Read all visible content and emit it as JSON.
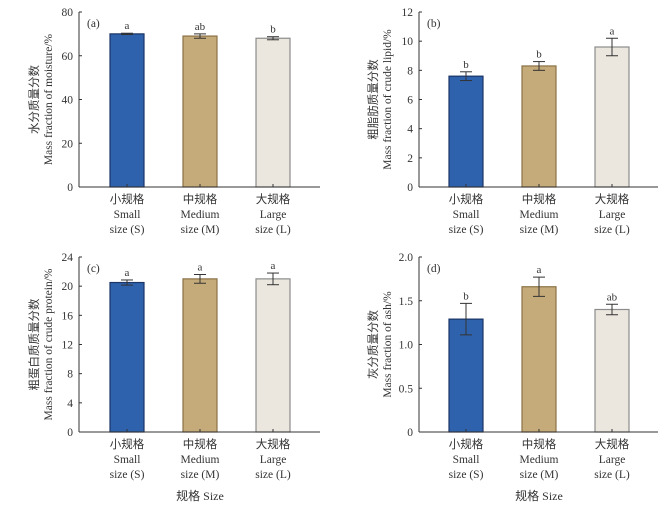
{
  "xlabel": "规格 Size",
  "colors": {
    "S": "#2f62ad",
    "M": "#c6ab7a",
    "L": "#ebe7df",
    "S_edge": "#1a3566",
    "M_edge": "#8a7145",
    "L_edge": "#8c8c8c"
  },
  "chart_data": [
    {
      "type": "bar",
      "panel": "(a)",
      "ylabel_cn": "水分质量分数",
      "ylabel_en": "Mass fraction of moisture/%",
      "ylim": [
        0,
        80
      ],
      "ticks": [
        "0",
        "20",
        "40",
        "60",
        "80"
      ],
      "categories": [
        [
          "小规格",
          "Small",
          "size (S)"
        ],
        [
          "中规格",
          "Medium",
          "size (M)"
        ],
        [
          "大规格",
          "Large",
          "size (L)"
        ]
      ],
      "values": [
        70,
        69,
        68
      ],
      "errors": [
        0.3,
        1.0,
        0.7
      ],
      "letters": [
        "a",
        "ab",
        "b"
      ]
    },
    {
      "type": "bar",
      "panel": "(b)",
      "ylabel_cn": "粗脂肪质量分数",
      "ylabel_en": "Mass fraction of crude lipid/%",
      "ylim": [
        0,
        12
      ],
      "ticks": [
        "0",
        "2",
        "4",
        "6",
        "8",
        "10",
        "12"
      ],
      "categories": [
        [
          "小规格",
          "Small",
          "size (S)"
        ],
        [
          "中规格",
          "Medium",
          "size (M)"
        ],
        [
          "大规格",
          "Large",
          "size (L)"
        ]
      ],
      "values": [
        7.6,
        8.3,
        9.6
      ],
      "errors": [
        0.3,
        0.3,
        0.6
      ],
      "letters": [
        "b",
        "b",
        "a"
      ]
    },
    {
      "type": "bar",
      "panel": "(c)",
      "ylabel_cn": "粗蛋白质质量分数",
      "ylabel_en": "Mass fraction of crude protein/%",
      "ylim": [
        0,
        24
      ],
      "ticks": [
        "0",
        "4",
        "8",
        "12",
        "16",
        "20",
        "24"
      ],
      "categories": [
        [
          "小规格",
          "Small",
          "size (S)"
        ],
        [
          "中规格",
          "Medium",
          "size (M)"
        ],
        [
          "大规格",
          "Large",
          "size (L)"
        ]
      ],
      "values": [
        20.5,
        21.0,
        21.0
      ],
      "errors": [
        0.35,
        0.6,
        0.8
      ],
      "letters": [
        "a",
        "a",
        "a"
      ]
    },
    {
      "type": "bar",
      "panel": "(d)",
      "ylabel_cn": "灰分质量分数",
      "ylabel_en": "Mass fraction of ash/%",
      "ylim": [
        0,
        2
      ],
      "ticks": [
        "0",
        "0.5",
        "1.0",
        "1.5",
        "2.0"
      ],
      "categories": [
        [
          "小规格",
          "Small",
          "size (S)"
        ],
        [
          "中规格",
          "Medium",
          "size (M)"
        ],
        [
          "大规格",
          "Large",
          "size (L)"
        ]
      ],
      "values": [
        1.29,
        1.66,
        1.4
      ],
      "errors": [
        0.18,
        0.11,
        0.06
      ],
      "letters": [
        "b",
        "a",
        "ab"
      ]
    }
  ]
}
